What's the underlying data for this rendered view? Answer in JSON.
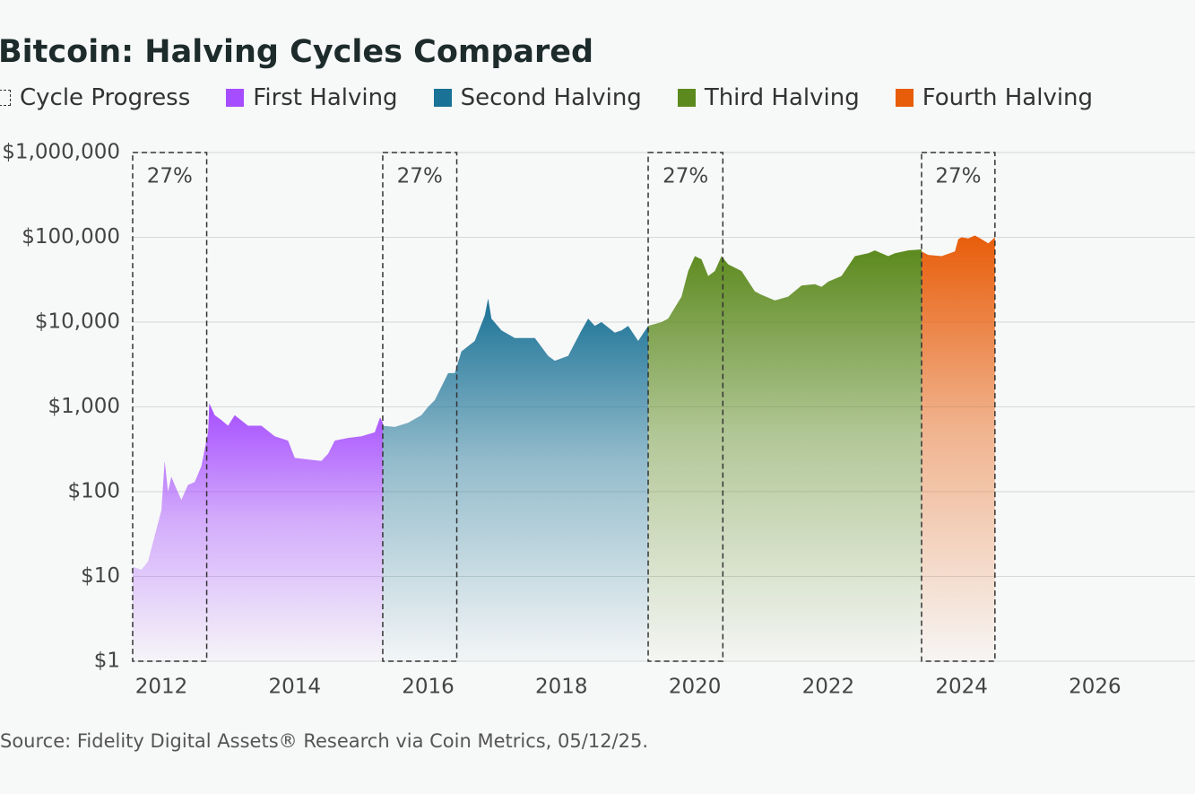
{
  "chart_data": {
    "type": "area",
    "title": "Bitcoin: Halving Cycles Compared",
    "source": "Source: Fidelity Digital Assets® Research via Coin Metrics, 05/12/25.",
    "log_scale": true,
    "grid": true,
    "legend_box_label": "Cycle Progress",
    "xlim": [
      2011.57,
      2027.5
    ],
    "xticks": [
      2012,
      2014,
      2016,
      2018,
      2020,
      2022,
      2024,
      2026
    ],
    "ylim": [
      1,
      1000000
    ],
    "yticks": [
      {
        "value": 1,
        "label": "$1"
      },
      {
        "value": 10,
        "label": "$10"
      },
      {
        "value": 100,
        "label": "$100"
      },
      {
        "value": 1000,
        "label": "$1,000"
      },
      {
        "value": 10000,
        "label": "$10,000"
      },
      {
        "value": 100000,
        "label": "$100,000"
      },
      {
        "value": 1000000,
        "label": "$1,000,000"
      }
    ],
    "progress_boxes": [
      {
        "label": "27%",
        "start": 2011.57,
        "end": 2012.68
      },
      {
        "label": "27%",
        "start": 2015.32,
        "end": 2016.43
      },
      {
        "label": "27%",
        "start": 2019.3,
        "end": 2020.42
      },
      {
        "label": "27%",
        "start": 2023.4,
        "end": 2024.5
      }
    ],
    "series": [
      {
        "name": "First Halving",
        "color": "#a64dff",
        "x": [
          2011.57,
          2011.7,
          2011.8,
          2011.9,
          2012.0,
          2012.05,
          2012.1,
          2012.15,
          2012.2,
          2012.3,
          2012.4,
          2012.5,
          2012.6,
          2012.7,
          2012.72,
          2012.8,
          2012.9,
          2013.0,
          2013.1,
          2013.3,
          2013.5,
          2013.7,
          2013.9,
          2014.0,
          2014.2,
          2014.4,
          2014.5,
          2014.6,
          2014.8,
          2015.0,
          2015.2,
          2015.28,
          2015.32
        ],
        "values": [
          13,
          12,
          15,
          30,
          60,
          230,
          100,
          150,
          120,
          80,
          120,
          130,
          200,
          500,
          1100,
          800,
          700,
          600,
          800,
          600,
          600,
          450,
          400,
          250,
          240,
          230,
          280,
          400,
          430,
          450,
          500,
          750,
          650
        ]
      },
      {
        "name": "Second Halving",
        "color": "#1a7296",
        "x": [
          2015.32,
          2015.5,
          2015.7,
          2015.9,
          2016.0,
          2016.1,
          2016.3,
          2016.4,
          2016.5,
          2016.7,
          2016.85,
          2016.9,
          2016.95,
          2017.1,
          2017.3,
          2017.6,
          2017.8,
          2017.9,
          2018.1,
          2018.3,
          2018.4,
          2018.5,
          2018.6,
          2018.8,
          2018.9,
          2019.0,
          2019.15,
          2019.3
        ],
        "values": [
          600,
          580,
          650,
          800,
          1000,
          1200,
          2500,
          2500,
          4500,
          6000,
          12000,
          19000,
          11000,
          8000,
          6500,
          6500,
          4000,
          3500,
          4000,
          8000,
          11000,
          9000,
          10000,
          7500,
          8000,
          9000,
          6000,
          9000
        ]
      },
      {
        "name": "Third Halving",
        "color": "#5c8a1e",
        "x": [
          2019.3,
          2019.5,
          2019.6,
          2019.8,
          2019.9,
          2020.0,
          2020.1,
          2020.2,
          2020.3,
          2020.4,
          2020.5,
          2020.7,
          2020.9,
          2021.0,
          2021.2,
          2021.4,
          2021.6,
          2021.8,
          2021.9,
          2022.0,
          2022.2,
          2022.4,
          2022.6,
          2022.7,
          2022.9,
          2023.0,
          2023.2,
          2023.4
        ],
        "values": [
          9000,
          10000,
          11000,
          20000,
          40000,
          60000,
          55000,
          35000,
          40000,
          60000,
          48000,
          40000,
          23000,
          21000,
          18000,
          20000,
          27000,
          28000,
          26000,
          30000,
          35000,
          60000,
          65000,
          70000,
          60000,
          65000,
          70000,
          72000
        ]
      },
      {
        "name": "Fourth Halving",
        "color": "#e85d0a",
        "x": [
          2023.4,
          2023.5,
          2023.7,
          2023.9,
          2023.95,
          2024.0,
          2024.1,
          2024.2,
          2024.3,
          2024.4,
          2024.5
        ],
        "values": [
          68000,
          62000,
          60000,
          68000,
          95000,
          100000,
          97000,
          105000,
          95000,
          85000,
          100000
        ]
      }
    ]
  }
}
